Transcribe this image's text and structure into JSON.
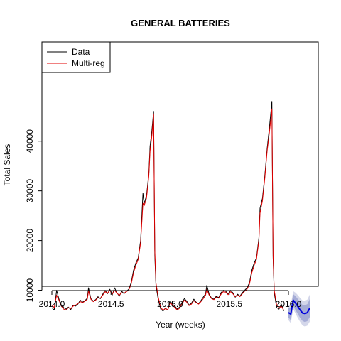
{
  "chart_data": {
    "type": "line",
    "title": "GENERAL BATTERIES",
    "xlabel": "Year (weeks)",
    "ylabel": "Total Sales",
    "xlim": [
      2014.0,
      2016.2
    ],
    "ylim": [
      1000,
      50000
    ],
    "xticks": [
      2014.0,
      2014.5,
      2015.0,
      2015.5,
      2016.0
    ],
    "xtick_labels": [
      "2014.0",
      "2014.5",
      "2015.0",
      "2015.5",
      "2016.0"
    ],
    "yticks": [
      10000,
      20000,
      30000,
      40000
    ],
    "ytick_labels": [
      "10000",
      "20000",
      "30000",
      "40000"
    ],
    "grid": false,
    "legend": {
      "position": "top-left",
      "entries": [
        {
          "label": "Data",
          "color": "#000000"
        },
        {
          "label": "Multi-reg",
          "color": "#e00000"
        }
      ]
    },
    "series": [
      {
        "name": "Data",
        "color": "#000000",
        "points": [
          [
            2014.0,
            6500
          ],
          [
            2014.02,
            6000
          ],
          [
            2014.04,
            10000
          ],
          [
            2014.06,
            8200
          ],
          [
            2014.08,
            7000
          ],
          [
            2014.1,
            6500
          ],
          [
            2014.12,
            6200
          ],
          [
            2014.14,
            6600
          ],
          [
            2014.16,
            6100
          ],
          [
            2014.18,
            7000
          ],
          [
            2014.2,
            6800
          ],
          [
            2014.22,
            7200
          ],
          [
            2014.24,
            8000
          ],
          [
            2014.26,
            7600
          ],
          [
            2014.28,
            7900
          ],
          [
            2014.3,
            8400
          ],
          [
            2014.31,
            10500
          ],
          [
            2014.33,
            8300
          ],
          [
            2014.35,
            7800
          ],
          [
            2014.37,
            8100
          ],
          [
            2014.39,
            8700
          ],
          [
            2014.41,
            8300
          ],
          [
            2014.43,
            9200
          ],
          [
            2014.45,
            10000
          ],
          [
            2014.47,
            9300
          ],
          [
            2014.49,
            10200
          ],
          [
            2014.51,
            9000
          ],
          [
            2014.53,
            10500
          ],
          [
            2014.55,
            9500
          ],
          [
            2014.57,
            8800
          ],
          [
            2014.59,
            9800
          ],
          [
            2014.61,
            9300
          ],
          [
            2014.63,
            9800
          ],
          [
            2014.65,
            10200
          ],
          [
            2014.67,
            11500
          ],
          [
            2014.69,
            14000
          ],
          [
            2014.71,
            15500
          ],
          [
            2014.73,
            16500
          ],
          [
            2014.75,
            20000
          ],
          [
            2014.77,
            29500
          ],
          [
            2014.78,
            27500
          ],
          [
            2014.8,
            29000
          ],
          [
            2014.82,
            33500
          ],
          [
            2014.83,
            39000
          ],
          [
            2014.845,
            42000
          ],
          [
            2014.86,
            46000
          ],
          [
            2014.87,
            17000
          ],
          [
            2014.88,
            11000
          ],
          [
            2014.9,
            8000
          ],
          [
            2014.92,
            6200
          ],
          [
            2014.94,
            5800
          ],
          [
            2014.96,
            6400
          ],
          [
            2014.98,
            6000
          ],
          [
            2015.0,
            7800
          ],
          [
            2015.02,
            7200
          ],
          [
            2015.04,
            6800
          ],
          [
            2015.06,
            6200
          ],
          [
            2015.08,
            6600
          ],
          [
            2015.1,
            7500
          ],
          [
            2015.12,
            8300
          ],
          [
            2015.14,
            7800
          ],
          [
            2015.16,
            7000
          ],
          [
            2015.18,
            7400
          ],
          [
            2015.2,
            8200
          ],
          [
            2015.22,
            7600
          ],
          [
            2015.24,
            7300
          ],
          [
            2015.26,
            7900
          ],
          [
            2015.28,
            8600
          ],
          [
            2015.3,
            9300
          ],
          [
            2015.31,
            11000
          ],
          [
            2015.33,
            9200
          ],
          [
            2015.35,
            8400
          ],
          [
            2015.37,
            8200
          ],
          [
            2015.39,
            8800
          ],
          [
            2015.41,
            8500
          ],
          [
            2015.43,
            9500
          ],
          [
            2015.45,
            10000
          ],
          [
            2015.47,
            9800
          ],
          [
            2015.49,
            9200
          ],
          [
            2015.51,
            10000
          ],
          [
            2015.53,
            9500
          ],
          [
            2015.55,
            8600
          ],
          [
            2015.57,
            9200
          ],
          [
            2015.59,
            8800
          ],
          [
            2015.61,
            9500
          ],
          [
            2015.63,
            10000
          ],
          [
            2015.65,
            10500
          ],
          [
            2015.67,
            11500
          ],
          [
            2015.69,
            14000
          ],
          [
            2015.71,
            15500
          ],
          [
            2015.73,
            16500
          ],
          [
            2015.75,
            20500
          ],
          [
            2015.76,
            26500
          ],
          [
            2015.78,
            28500
          ],
          [
            2015.8,
            33000
          ],
          [
            2015.82,
            38500
          ],
          [
            2015.84,
            43000
          ],
          [
            2015.86,
            48000
          ],
          [
            2015.87,
            16500
          ],
          [
            2015.88,
            9500
          ],
          [
            2015.9,
            6500
          ],
          [
            2015.92,
            6200
          ],
          [
            2015.94,
            7200
          ],
          [
            2015.96,
            5800
          ]
        ]
      },
      {
        "name": "Multi-reg",
        "color": "#e00000",
        "points": [
          [
            2014.0,
            7000
          ],
          [
            2014.02,
            6500
          ],
          [
            2014.04,
            9000
          ],
          [
            2014.06,
            8000
          ],
          [
            2014.08,
            6800
          ],
          [
            2014.1,
            6200
          ],
          [
            2014.12,
            6000
          ],
          [
            2014.14,
            6500
          ],
          [
            2014.16,
            6300
          ],
          [
            2014.18,
            6800
          ],
          [
            2014.2,
            7000
          ],
          [
            2014.22,
            7300
          ],
          [
            2014.24,
            7700
          ],
          [
            2014.26,
            7500
          ],
          [
            2014.28,
            7800
          ],
          [
            2014.3,
            8200
          ],
          [
            2014.31,
            9800
          ],
          [
            2014.33,
            8200
          ],
          [
            2014.35,
            7700
          ],
          [
            2014.37,
            8000
          ],
          [
            2014.39,
            8500
          ],
          [
            2014.41,
            8400
          ],
          [
            2014.43,
            9000
          ],
          [
            2014.45,
            9700
          ],
          [
            2014.47,
            9400
          ],
          [
            2014.49,
            10000
          ],
          [
            2014.51,
            9200
          ],
          [
            2014.53,
            10000
          ],
          [
            2014.55,
            9400
          ],
          [
            2014.57,
            9000
          ],
          [
            2014.59,
            9500
          ],
          [
            2014.61,
            9400
          ],
          [
            2014.63,
            9700
          ],
          [
            2014.65,
            10000
          ],
          [
            2014.67,
            11200
          ],
          [
            2014.69,
            13500
          ],
          [
            2014.71,
            15000
          ],
          [
            2014.73,
            16200
          ],
          [
            2014.75,
            19500
          ],
          [
            2014.77,
            27500
          ],
          [
            2014.78,
            27000
          ],
          [
            2014.8,
            28500
          ],
          [
            2014.82,
            33000
          ],
          [
            2014.83,
            38000
          ],
          [
            2014.845,
            41000
          ],
          [
            2014.86,
            45500
          ],
          [
            2014.87,
            18000
          ],
          [
            2014.88,
            11500
          ],
          [
            2014.9,
            8500
          ],
          [
            2014.92,
            6500
          ],
          [
            2014.94,
            6000
          ],
          [
            2014.96,
            6300
          ],
          [
            2014.98,
            6100
          ],
          [
            2015.0,
            7500
          ],
          [
            2015.02,
            7000
          ],
          [
            2015.04,
            6500
          ],
          [
            2015.06,
            6000
          ],
          [
            2015.08,
            6400
          ],
          [
            2015.1,
            7200
          ],
          [
            2015.12,
            8000
          ],
          [
            2015.14,
            7600
          ],
          [
            2015.16,
            6900
          ],
          [
            2015.18,
            7200
          ],
          [
            2015.2,
            7900
          ],
          [
            2015.22,
            7500
          ],
          [
            2015.24,
            7200
          ],
          [
            2015.26,
            7700
          ],
          [
            2015.28,
            8300
          ],
          [
            2015.3,
            9000
          ],
          [
            2015.31,
            10200
          ],
          [
            2015.33,
            9000
          ],
          [
            2015.35,
            8300
          ],
          [
            2015.37,
            8100
          ],
          [
            2015.39,
            8600
          ],
          [
            2015.41,
            8400
          ],
          [
            2015.43,
            9200
          ],
          [
            2015.45,
            9700
          ],
          [
            2015.47,
            9600
          ],
          [
            2015.49,
            9100
          ],
          [
            2015.51,
            9700
          ],
          [
            2015.53,
            9300
          ],
          [
            2015.55,
            8700
          ],
          [
            2015.57,
            9000
          ],
          [
            2015.59,
            8700
          ],
          [
            2015.61,
            9300
          ],
          [
            2015.63,
            9800
          ],
          [
            2015.65,
            10200
          ],
          [
            2015.67,
            11200
          ],
          [
            2015.69,
            13500
          ],
          [
            2015.71,
            15000
          ],
          [
            2015.73,
            16200
          ],
          [
            2015.75,
            20000
          ],
          [
            2015.76,
            25500
          ],
          [
            2015.78,
            28000
          ],
          [
            2015.8,
            32500
          ],
          [
            2015.82,
            38000
          ],
          [
            2015.84,
            42000
          ],
          [
            2015.86,
            46500
          ],
          [
            2015.87,
            17000
          ],
          [
            2015.88,
            10000
          ],
          [
            2015.9,
            7000
          ],
          [
            2015.92,
            6400
          ],
          [
            2015.94,
            6800
          ],
          [
            2015.96,
            6000
          ]
        ]
      },
      {
        "name": "forecast",
        "color": "#0000dd",
        "points": [
          [
            2016.0,
            5500
          ],
          [
            2016.02,
            5200
          ],
          [
            2016.04,
            8000
          ],
          [
            2016.06,
            7400
          ],
          [
            2016.08,
            6700
          ],
          [
            2016.1,
            6000
          ],
          [
            2016.12,
            5400
          ],
          [
            2016.14,
            5300
          ],
          [
            2016.16,
            5500
          ],
          [
            2016.18,
            6400
          ]
        ]
      }
    ],
    "forecast_intervals": {
      "x": [
        2016.0,
        2016.02,
        2016.04,
        2016.06,
        2016.08,
        2016.1,
        2016.12,
        2016.14,
        2016.16,
        2016.18
      ],
      "lo80": [
        4500,
        4000,
        6800,
        6000,
        5200,
        4400,
        3800,
        3600,
        3800,
        4600
      ],
      "hi80": [
        6500,
        6400,
        9200,
        8800,
        8200,
        7600,
        7000,
        7000,
        7200,
        8200
      ],
      "lo95": [
        4000,
        3400,
        6200,
        5300,
        4400,
        3600,
        2900,
        2700,
        2900,
        3700
      ],
      "hi95": [
        7000,
        7000,
        9800,
        9500,
        9000,
        8400,
        7900,
        7900,
        8100,
        9100
      ],
      "color80": "#a5acd6",
      "color95": "#d4d7ea"
    }
  }
}
